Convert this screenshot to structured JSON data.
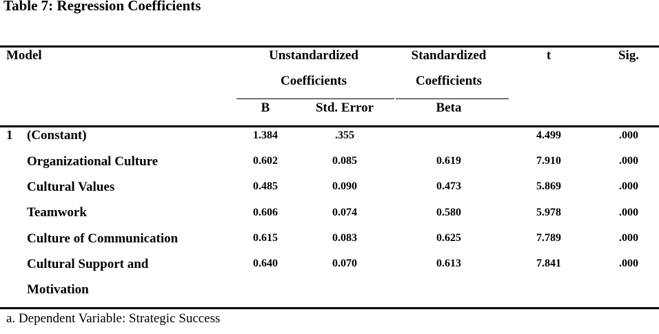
{
  "caption": "Table 7: Regression Coefficients",
  "headers": {
    "model": "Model",
    "unstd_line1": "Unstandardized",
    "unstd_line2": "Coefficients",
    "std_line1": "Standardized",
    "std_line2": "Coefficients",
    "t": "t",
    "sig": "Sig.",
    "b": "B",
    "std_error": "Std. Error",
    "beta": "Beta"
  },
  "model_number": "1",
  "rows": [
    {
      "label": "(Constant)",
      "b": "1.384",
      "se": ".355",
      "beta": "",
      "t": "4.499",
      "sig": ".000"
    },
    {
      "label": "Organizational Culture",
      "b": "0.602",
      "se": "0.085",
      "beta": "0.619",
      "t": "7.910",
      "sig": ".000"
    },
    {
      "label": "Cultural Values",
      "b": "0.485",
      "se": "0.090",
      "beta": "0.473",
      "t": "5.869",
      "sig": ".000"
    },
    {
      "label": "Teamwork",
      "b": "0.606",
      "se": "0.074",
      "beta": "0.580",
      "t": "5.978",
      "sig": ".000"
    },
    {
      "label": "Culture of Communication",
      "b": "0.615",
      "se": "0.083",
      "beta": "0.625",
      "t": "7.789",
      "sig": ".000"
    },
    {
      "label": "Cultural Support and",
      "label_line2": "Motivation",
      "b": "0.640",
      "se": "0.070",
      "beta": "0.613",
      "t": "7.841",
      "sig": ".000"
    }
  ],
  "footnote": "a. Dependent Variable:  Strategic Success"
}
